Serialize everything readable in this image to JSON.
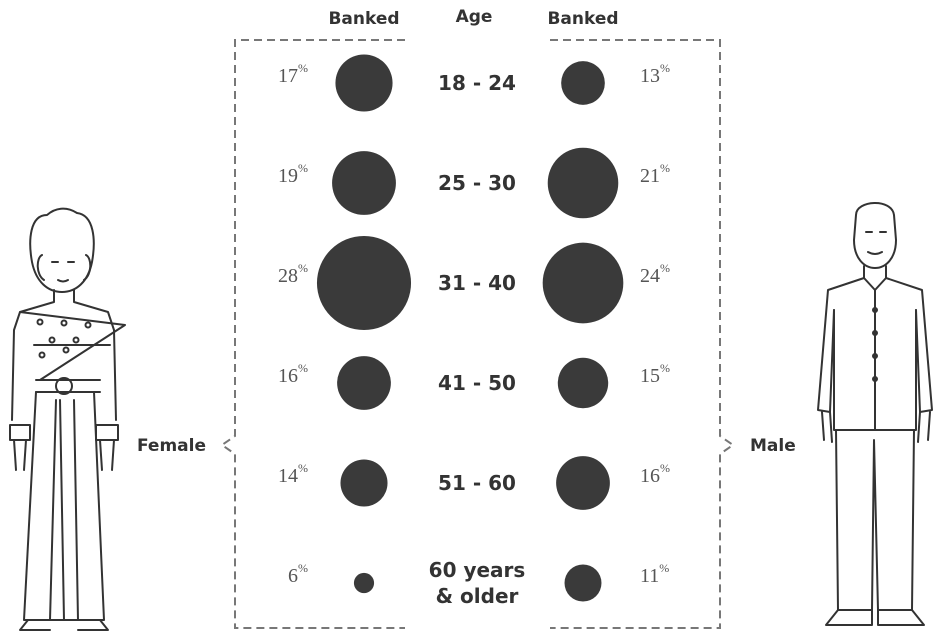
{
  "chart_data": {
    "type": "bubble",
    "column_headers": [
      "Banked",
      "Age",
      "Banked"
    ],
    "categories": [
      "18 - 24",
      "25 - 30",
      "31 - 40",
      "41 - 50",
      "51 - 60",
      "60 years & older"
    ],
    "series": [
      {
        "name": "Female",
        "color": "#3a3a3a",
        "values": [
          17,
          19,
          28,
          16,
          14,
          6
        ],
        "value_labels": [
          "17%",
          "19%",
          "28%",
          "16%",
          "14%",
          "6%"
        ]
      },
      {
        "name": "Male",
        "color": "#3a3a3a",
        "values": [
          13,
          21,
          24,
          15,
          16,
          11
        ],
        "value_labels": [
          "13%",
          "21%",
          "24%",
          "15%",
          "16%",
          "11%"
        ]
      }
    ]
  }
}
